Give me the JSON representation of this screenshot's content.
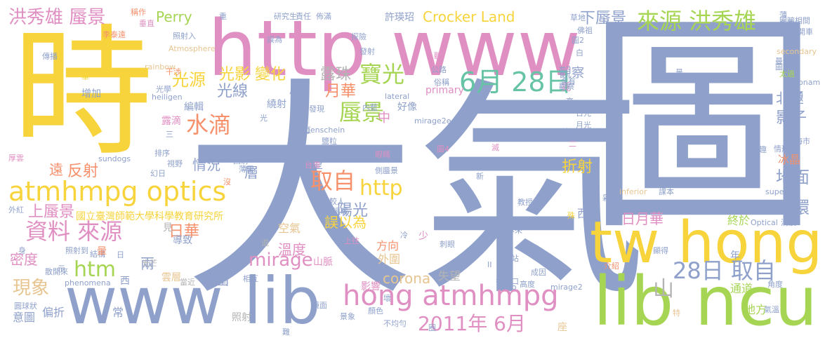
{
  "palette": {
    "blue": "#8fa1cb",
    "yellow": "#f7d43c",
    "pink": "#e08fc2",
    "green": "#a6d553",
    "orange": "#f6916c",
    "teal": "#67c3a6",
    "tan": "#e7c591",
    "gray": "#b3b3b3"
  },
  "words": [
    {
      "text": "大氣",
      "color": "#8fa1cb"
    },
    {
      "text": "圖",
      "color": "#8fa1cb"
    },
    {
      "text": "時",
      "color": "#f7d43c"
    },
    {
      "text": "http www",
      "color": "#e08fc2"
    },
    {
      "text": "lib ncu",
      "color": "#a6d553"
    },
    {
      "text": "www lib",
      "color": "#8fa1cb"
    },
    {
      "text": "tw hong",
      "color": "#f7d43c"
    },
    {
      "text": "atmhmpg optics",
      "color": "#f7d43c"
    },
    {
      "text": "hong atmhmpg",
      "color": "#e08fc2"
    },
    {
      "text": "6月 28日",
      "color": "#67c3a6"
    },
    {
      "text": "28日 取自",
      "color": "#8fa1cb"
    },
    {
      "text": "資料 來源",
      "color": "#e08fc2"
    },
    {
      "text": "來源 洪秀雄",
      "color": "#a6d553"
    },
    {
      "text": "寶光",
      "color": "#a6d553"
    },
    {
      "text": "蜃景",
      "color": "#a6d553"
    },
    {
      "text": "取自",
      "color": "#f6916c"
    },
    {
      "text": "水滴",
      "color": "#f6916c"
    },
    {
      "text": "2011年 6月",
      "color": "#e08fc2"
    },
    {
      "text": "http",
      "color": "#f7d43c"
    },
    {
      "text": "htm",
      "color": "#a6d553"
    },
    {
      "text": "mirage",
      "color": "#e08fc2"
    },
    {
      "text": "現象",
      "color": "#e7c591"
    },
    {
      "text": "洪秀雄 蜃景",
      "color": "#e08fc2"
    },
    {
      "text": "山",
      "color": "#b3b3b3"
    },
    {
      "text": "光環",
      "color": "#8fa1cb"
    },
    {
      "text": "地面",
      "color": "#8fa1cb"
    },
    {
      "text": "光源",
      "color": "#f7d43c"
    },
    {
      "text": "光影 變化",
      "color": "#f7d43c"
    },
    {
      "text": "光線",
      "color": "#8fa1cb"
    },
    {
      "text": "月華",
      "color": "#f6916c"
    },
    {
      "text": "露珠",
      "color": "#b3b3b3"
    },
    {
      "text": "下蜃景",
      "color": "#8fa1cb"
    },
    {
      "text": "Crocker Land",
      "color": "#f7d43c"
    },
    {
      "text": "Perry",
      "color": "#a6d553"
    },
    {
      "text": "日華",
      "color": "#f6916c"
    },
    {
      "text": "陽光",
      "color": "#8fa1cb"
    },
    {
      "text": "影子",
      "color": "#8fa1cb"
    },
    {
      "text": "北極",
      "color": "#8fa1cb"
    },
    {
      "text": "折射",
      "color": "#f7d43c"
    },
    {
      "text": "反射",
      "color": "#f6916c"
    },
    {
      "text": "溫度",
      "color": "#e08fc2"
    },
    {
      "text": "密度",
      "color": "#e08fc2"
    },
    {
      "text": "上蜃景",
      "color": "#e08fc2"
    },
    {
      "text": "日月華",
      "color": "#e08fc2"
    },
    {
      "text": "corona",
      "color": "#e7c591"
    },
    {
      "text": "包圍",
      "color": "#8fa1cb"
    },
    {
      "text": "誤以為",
      "color": "#f7d43c"
    },
    {
      "text": "國立臺灣師範大學科學教育研究所",
      "color": "#f7d43c"
    },
    {
      "text": "層",
      "color": "#8fa1cb"
    },
    {
      "text": "中",
      "color": "#e08fc2"
    },
    {
      "text": "兩",
      "color": "#8fa1cb"
    },
    {
      "text": "遠",
      "color": "#f6916c"
    },
    {
      "text": "情況",
      "color": "#8fa1cb"
    },
    {
      "text": "冰晶",
      "color": "#f6916c"
    },
    {
      "text": "常見",
      "color": "#8fa1cb"
    },
    {
      "text": "觀察",
      "color": "#8fa1cb"
    },
    {
      "text": "希望",
      "color": "#8fa1cb"
    },
    {
      "text": "空氣",
      "color": "#e7c591"
    },
    {
      "text": "方向",
      "color": "#f6916c"
    },
    {
      "text": "外圍",
      "color": "#e7c591"
    },
    {
      "text": "失望",
      "color": "#b3b3b3"
    },
    {
      "text": "影響",
      "color": "#e08fc2"
    },
    {
      "text": "終於",
      "color": "#a6d553"
    },
    {
      "text": "西北",
      "color": "#8fa1cb"
    },
    {
      "text": "通道",
      "color": "#a6d553"
    },
    {
      "text": "地方",
      "color": "#a6d553"
    },
    {
      "text": "照射",
      "color": "#b3b3b3"
    },
    {
      "text": "偏折",
      "color": "#8fa1cb"
    },
    {
      "text": "意圖",
      "color": "#8fa1cb"
    },
    {
      "text": "圓球狀",
      "color": "#8fa1cb"
    },
    {
      "text": "常",
      "color": "#8fa1cb"
    },
    {
      "text": "西",
      "color": "#8fa1cb"
    },
    {
      "text": "雲層",
      "color": "#e7c591"
    },
    {
      "text": "當近",
      "color": "#b3b3b3"
    },
    {
      "text": "光芒",
      "color": "#b3b3b3"
    },
    {
      "text": "phenomena",
      "color": "#8fa1cb"
    },
    {
      "text": "散開來",
      "color": "#8fa1cb"
    },
    {
      "text": "照射到",
      "color": "#8fa1cb"
    },
    {
      "text": "結構",
      "color": "#8fa1cb"
    },
    {
      "text": "導致",
      "color": "#8fa1cb"
    },
    {
      "text": "見",
      "color": "#b3b3b3"
    },
    {
      "text": "山脈",
      "color": "#e08fc2"
    },
    {
      "text": "退",
      "color": "#b3b3b3"
    },
    {
      "text": "相互",
      "color": "#8fa1cb"
    },
    {
      "text": "鏡面",
      "color": "#8fa1cb"
    },
    {
      "text": "景象",
      "color": "#8fa1cb"
    },
    {
      "text": "顏色",
      "color": "#8fa1cb"
    },
    {
      "text": "不均勻",
      "color": "#8fa1cb"
    },
    {
      "text": "halo",
      "color": "#8fa1cb"
    },
    {
      "text": "mirage2",
      "color": "#8fa1cb"
    },
    {
      "text": "高度",
      "color": "#8fa1cb"
    },
    {
      "text": "折射口",
      "color": "#8fa1cb"
    },
    {
      "text": "成因",
      "color": "#8fa1cb"
    },
    {
      "text": "角度",
      "color": "#8fa1cb"
    },
    {
      "text": "氣溫",
      "color": "#8fa1cb"
    },
    {
      "text": "介紹",
      "color": "#f6916c"
    },
    {
      "text": "年",
      "color": "#8fa1cb"
    },
    {
      "text": "顯得",
      "color": "#8fa1cb"
    },
    {
      "text": "座",
      "color": "#e7c591"
    },
    {
      "text": "特",
      "color": "#e7c591"
    },
    {
      "text": "刺眼",
      "color": "#8fa1cb"
    },
    {
      "text": "本來",
      "color": "#8fa1cb"
    },
    {
      "text": "教授",
      "color": "#8fa1cb"
    },
    {
      "text": "Optical",
      "color": "#8fa1cb"
    },
    {
      "text": "清晨",
      "color": "#8fa1cb"
    },
    {
      "text": "inferior",
      "color": "#e7c591"
    },
    {
      "text": "superior",
      "color": "#8fa1cb"
    },
    {
      "text": "課本",
      "color": "#8fa1cb"
    },
    {
      "text": "彩色",
      "color": "#8fa1cb"
    },
    {
      "text": "殊",
      "color": "#f7d43c"
    },
    {
      "text": "新",
      "color": "#8fa1cb"
    },
    {
      "text": "眼睛",
      "color": "#e08fc2"
    },
    {
      "text": "鹽粒",
      "color": "#8fa1cb"
    },
    {
      "text": "滅",
      "color": "#e08fc2"
    },
    {
      "text": "圖4",
      "color": "#e08fc2"
    },
    {
      "text": "有趣",
      "color": "#8fa1cb"
    },
    {
      "text": "情形",
      "color": "#8fa1cb"
    },
    {
      "text": "海市",
      "color": "#8fa1cb"
    },
    {
      "text": "月光",
      "color": "#8fa1cb"
    },
    {
      "text": "日光",
      "color": "#8fa1cb"
    },
    {
      "text": "霓",
      "color": "#e08fc2"
    },
    {
      "text": "高",
      "color": "#8fa1cb"
    },
    {
      "text": "觀察",
      "color": "#8fa1cb"
    },
    {
      "text": "含有",
      "color": "#8fa1cb"
    },
    {
      "text": "反",
      "color": "#e08fc2"
    },
    {
      "text": "白",
      "color": "#8fa1cb"
    },
    {
      "text": "圖2",
      "color": "#8fa1cb"
    },
    {
      "text": "佛祖",
      "color": "#8fa1cb"
    },
    {
      "text": "明暗相間",
      "color": "#8fa1cb"
    },
    {
      "text": "曼樓",
      "color": "#8fa1cb"
    },
    {
      "text": "secondary",
      "color": "#e7c591"
    },
    {
      "text": "太過",
      "color": "#a6d553"
    },
    {
      "text": "低頭",
      "color": "#8fa1cb"
    },
    {
      "text": "高處",
      "color": "#8fa1cb"
    },
    {
      "text": "冬季",
      "color": "#8fa1cb"
    },
    {
      "text": "圖",
      "color": "#8fa1cb"
    },
    {
      "text": "coronam",
      "color": "#8fa1cb"
    },
    {
      "text": "開車",
      "color": "#8fa1cb"
    },
    {
      "text": "草地",
      "color": "#8fa1cb"
    },
    {
      "text": "薄",
      "color": "#8fa1cb"
    },
    {
      "text": "重",
      "color": "#8fa1cb"
    },
    {
      "text": "研究生",
      "color": "#8fa1cb"
    },
    {
      "text": "責任",
      "color": "#8fa1cb"
    },
    {
      "text": "佈滿",
      "color": "#8fa1cb"
    },
    {
      "text": "許瑛玿",
      "color": "#8fa1cb"
    },
    {
      "text": "探險",
      "color": "#8fa1cb"
    },
    {
      "text": "發射",
      "color": "#8fa1cb"
    },
    {
      "text": "誤為",
      "color": "#8fa1cb"
    },
    {
      "text": "公路",
      "color": "#8fa1cb"
    },
    {
      "text": "聽",
      "color": "#e08fc2"
    },
    {
      "text": "俗稱",
      "color": "#8fa1cb"
    },
    {
      "text": "片",
      "color": "#8fa1cb"
    },
    {
      "text": "發現",
      "color": "#8fa1cb"
    },
    {
      "text": "內藍",
      "color": "#8fa1cb"
    },
    {
      "text": "lateral",
      "color": "#8fa1cb"
    },
    {
      "text": "primary",
      "color": "#e08fc2"
    },
    {
      "text": "繞射",
      "color": "#8fa1cb"
    },
    {
      "text": "好像",
      "color": "#8fa1cb"
    },
    {
      "text": "光",
      "color": "#8fa1cb"
    },
    {
      "text": "mirage2e",
      "color": "#8fa1cb"
    },
    {
      "text": "heiligenschein",
      "color": "#8fa1cb"
    },
    {
      "text": "虹",
      "color": "#8fa1cb"
    },
    {
      "text": "增加",
      "color": "#8fa1cb"
    },
    {
      "text": "heiligen",
      "color": "#8fa1cb"
    },
    {
      "text": "光學",
      "color": "#8fa1cb"
    },
    {
      "text": "編輯",
      "color": "#8fa1cb"
    },
    {
      "text": "rainbow",
      "color": "#e7c591"
    },
    {
      "text": "Atmosphere",
      "color": "#e7c591"
    },
    {
      "text": "照射入",
      "color": "#8fa1cb"
    },
    {
      "text": "干涉",
      "color": "#f6916c"
    },
    {
      "text": "華",
      "color": "#f7d43c"
    },
    {
      "text": "傳播",
      "color": "#8fa1cb"
    },
    {
      "text": "稱作",
      "color": "#f6916c"
    },
    {
      "text": "垂直",
      "color": "#e08fc2"
    },
    {
      "text": "李泰遠",
      "color": "#f6916c"
    },
    {
      "text": "露滴",
      "color": "#e08fc2"
    },
    {
      "text": "三",
      "color": "#8fa1cb"
    },
    {
      "text": "排序",
      "color": "#8fa1cb"
    },
    {
      "text": "視野",
      "color": "#8fa1cb"
    },
    {
      "text": "回射",
      "color": "#8fa1cb"
    },
    {
      "text": "薄雲",
      "color": "#8fa1cb"
    },
    {
      "text": "幻日",
      "color": "#8fa1cb"
    },
    {
      "text": "sundogs",
      "color": "#8fa1cb"
    },
    {
      "text": "厚雲",
      "color": "#e08fc2"
    },
    {
      "text": "外紅",
      "color": "#8fa1cb"
    },
    {
      "text": "台灣",
      "color": "#e08fc2"
    },
    {
      "text": "側蜃景",
      "color": "#8fa1cb"
    },
    {
      "text": "驚較人",
      "color": "#8fa1cb"
    },
    {
      "text": "溫暖",
      "color": "#8fa1cb"
    },
    {
      "text": "上往",
      "color": "#e08fc2"
    },
    {
      "text": "冷",
      "color": "#8fa1cb"
    },
    {
      "text": "少",
      "color": "#e08fc2"
    },
    {
      "text": "示",
      "color": "#8fa1cb"
    },
    {
      "text": "身",
      "color": "#8fa1cb"
    },
    {
      "text": "暈",
      "color": "#f6916c"
    },
    {
      "text": "沒",
      "color": "#f6916c"
    },
    {
      "text": "喔",
      "color": "#8fa1cb"
    },
    {
      "text": "熱",
      "color": "#8fa1cb"
    },
    {
      "text": "二",
      "color": "#e08fc2"
    },
    {
      "text": "景",
      "color": "#8fa1cb"
    },
    {
      "text": "II",
      "color": "#8fa1cb"
    },
    {
      "text": "站",
      "color": "#8fa1cb"
    },
    {
      "text": "日",
      "color": "#8fa1cb"
    },
    {
      "text": "圈",
      "color": "#8fa1cb"
    },
    {
      "text": "難",
      "color": "#8fa1cb"
    },
    {
      "text": "壞",
      "color": "#8fa1cb"
    },
    {
      "text": "圖3",
      "color": "#8fa1cb"
    }
  ]
}
